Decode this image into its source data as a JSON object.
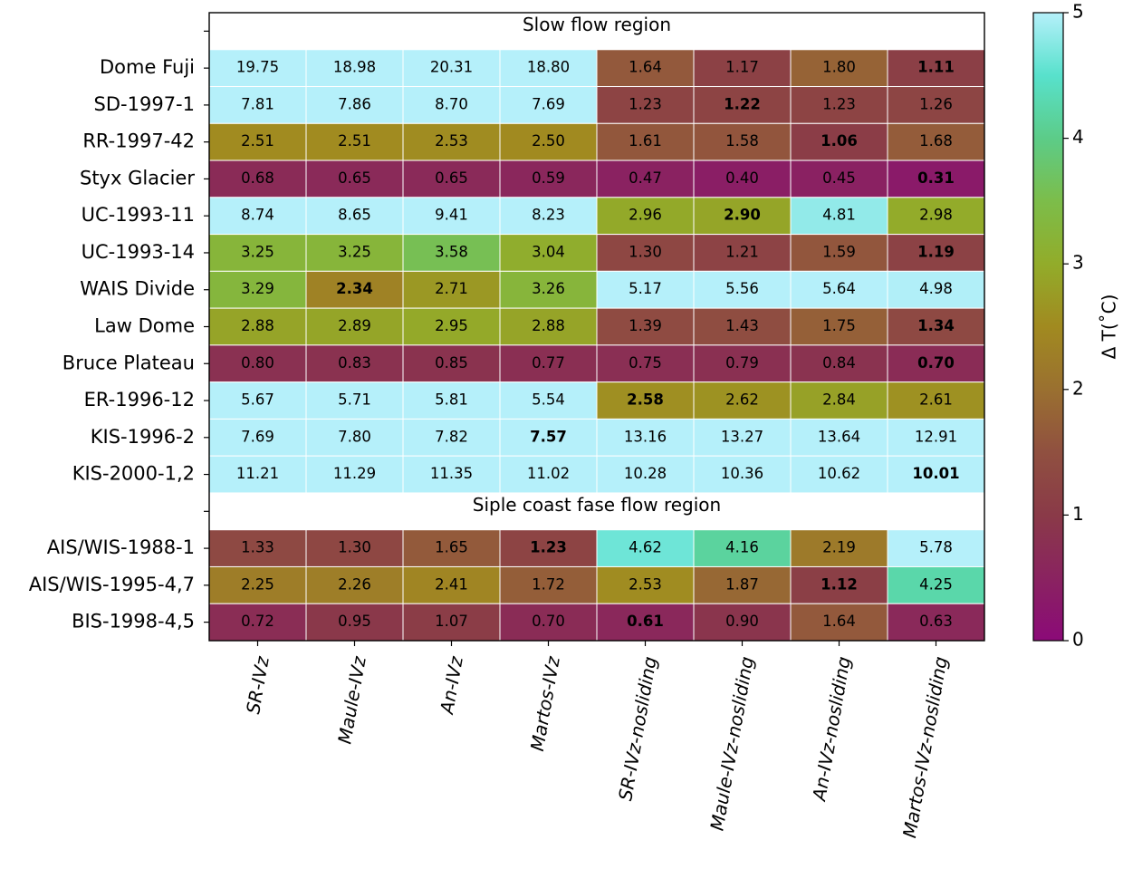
{
  "chart_data": {
    "type": "heatmap",
    "colorbar": {
      "label": "Δ T($^\\circ$C)",
      "label_display": "Δ T(˚C)",
      "min": 0,
      "max": 5,
      "ticks": [
        "0",
        "1",
        "2",
        "3",
        "4",
        "5"
      ]
    },
    "columns": [
      "SR-IVz",
      "Maule-IVz",
      "An-IVz",
      "Martos-IVz",
      "SR-IVz-nosliding",
      "Maule-IVz-nosliding",
      "An-IVz-nosliding",
      "Martos-IVz-nosliding"
    ],
    "sections": [
      {
        "title": "Slow flow region",
        "rows": [
          {
            "label": "Dome Fuji",
            "values": [
              "19.75",
              "18.98",
              "20.31",
              "18.80",
              "1.64",
              "1.17",
              "1.80",
              "1.11"
            ],
            "bold": 7
          },
          {
            "label": "SD-1997-1",
            "values": [
              "7.81",
              "7.86",
              "8.70",
              "7.69",
              "1.23",
              "1.22",
              "1.23",
              "1.26"
            ],
            "bold": 5
          },
          {
            "label": "RR-1997-42",
            "values": [
              "2.51",
              "2.51",
              "2.53",
              "2.50",
              "1.61",
              "1.58",
              "1.06",
              "1.68"
            ],
            "bold": 6
          },
          {
            "label": "Styx Glacier",
            "values": [
              "0.68",
              "0.65",
              "0.65",
              "0.59",
              "0.47",
              "0.40",
              "0.45",
              "0.31"
            ],
            "bold": 7
          },
          {
            "label": "UC-1993-11",
            "values": [
              "8.74",
              "8.65",
              "9.41",
              "8.23",
              "2.96",
              "2.90",
              "4.81",
              "2.98"
            ],
            "bold": 5
          },
          {
            "label": "UC-1993-14",
            "values": [
              "3.25",
              "3.25",
              "3.58",
              "3.04",
              "1.30",
              "1.21",
              "1.59",
              "1.19"
            ],
            "bold": 7
          },
          {
            "label": "WAIS Divide",
            "values": [
              "3.29",
              "2.34",
              "2.71",
              "3.26",
              "5.17",
              "5.56",
              "5.64",
              "4.98"
            ],
            "bold": 1
          },
          {
            "label": "Law Dome",
            "values": [
              "2.88",
              "2.89",
              "2.95",
              "2.88",
              "1.39",
              "1.43",
              "1.75",
              "1.34"
            ],
            "bold": 7
          },
          {
            "label": "Bruce Plateau",
            "values": [
              "0.80",
              "0.83",
              "0.85",
              "0.77",
              "0.75",
              "0.79",
              "0.84",
              "0.70"
            ],
            "bold": 7
          },
          {
            "label": "ER-1996-12",
            "values": [
              "5.67",
              "5.71",
              "5.81",
              "5.54",
              "2.58",
              "2.62",
              "2.84",
              "2.61"
            ],
            "bold": 4
          },
          {
            "label": "KIS-1996-2",
            "values": [
              "7.69",
              "7.80",
              "7.82",
              "7.57",
              "13.16",
              "13.27",
              "13.64",
              "12.91"
            ],
            "bold": 3
          },
          {
            "label": "KIS-2000-1,2",
            "values": [
              "11.21",
              "11.29",
              "11.35",
              "11.02",
              "10.28",
              "10.36",
              "10.62",
              "10.01"
            ],
            "bold": 7
          }
        ]
      },
      {
        "title": "Siple coast fase flow region",
        "rows": [
          {
            "label": "AIS/WIS-1988-1",
            "values": [
              "1.33",
              "1.30",
              "1.65",
              "1.23",
              "4.62",
              "4.16",
              "2.19",
              "5.78"
            ],
            "bold": 3
          },
          {
            "label": "AIS/WIS-1995-4,7",
            "values": [
              "2.25",
              "2.26",
              "2.41",
              "1.72",
              "2.53",
              "1.87",
              "1.12",
              "4.25"
            ],
            "bold": 6
          },
          {
            "label": "BIS-1998-4,5",
            "values": [
              "0.72",
              "0.95",
              "1.07",
              "0.70",
              "0.61",
              "0.90",
              "1.64",
              "0.63"
            ],
            "bold": 4
          }
        ]
      }
    ]
  }
}
